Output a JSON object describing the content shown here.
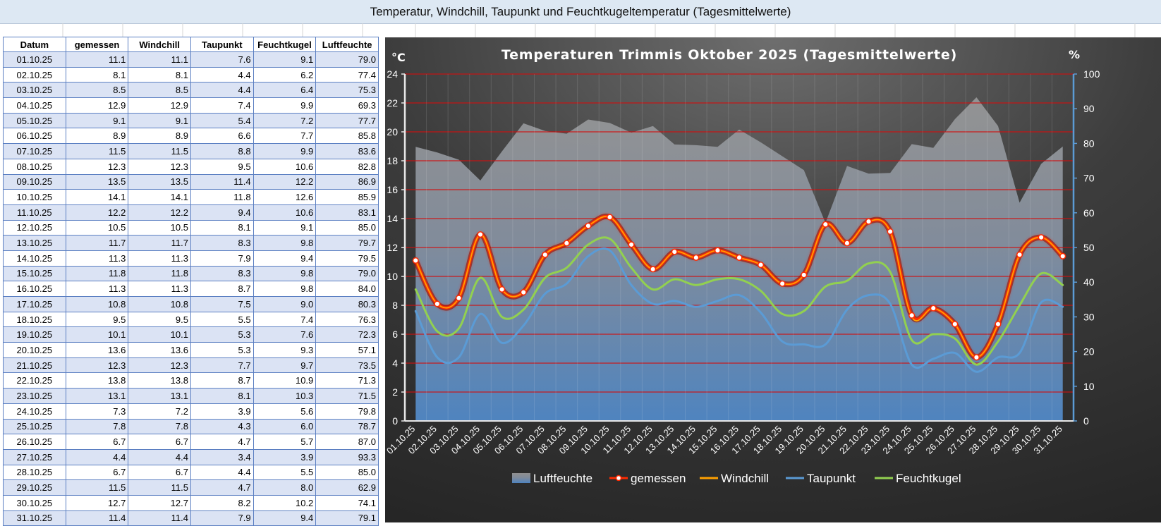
{
  "sheet": {
    "title": "Temperatur, Windchill, Taupunkt und Feuchtkugeltemperatur (Tagesmittelwerte)"
  },
  "table": {
    "headers": [
      "Datum",
      "gemessen",
      "Windchill",
      "Taupunkt",
      "Feuchtkugel",
      "Luftfeuchte"
    ],
    "rows": [
      [
        "01.10.25",
        "11.1",
        "11.1",
        "7.6",
        "9.1",
        "79.0"
      ],
      [
        "02.10.25",
        "8.1",
        "8.1",
        "4.4",
        "6.2",
        "77.4"
      ],
      [
        "03.10.25",
        "8.5",
        "8.5",
        "4.4",
        "6.4",
        "75.3"
      ],
      [
        "04.10.25",
        "12.9",
        "12.9",
        "7.4",
        "9.9",
        "69.3"
      ],
      [
        "05.10.25",
        "9.1",
        "9.1",
        "5.4",
        "7.2",
        "77.7"
      ],
      [
        "06.10.25",
        "8.9",
        "8.9",
        "6.6",
        "7.7",
        "85.8"
      ],
      [
        "07.10.25",
        "11.5",
        "11.5",
        "8.8",
        "9.9",
        "83.6"
      ],
      [
        "08.10.25",
        "12.3",
        "12.3",
        "9.5",
        "10.6",
        "82.8"
      ],
      [
        "09.10.25",
        "13.5",
        "13.5",
        "11.4",
        "12.2",
        "86.9"
      ],
      [
        "10.10.25",
        "14.1",
        "14.1",
        "11.8",
        "12.6",
        "85.9"
      ],
      [
        "11.10.25",
        "12.2",
        "12.2",
        "9.4",
        "10.6",
        "83.1"
      ],
      [
        "12.10.25",
        "10.5",
        "10.5",
        "8.1",
        "9.1",
        "85.0"
      ],
      [
        "13.10.25",
        "11.7",
        "11.7",
        "8.3",
        "9.8",
        "79.7"
      ],
      [
        "14.10.25",
        "11.3",
        "11.3",
        "7.9",
        "9.4",
        "79.5"
      ],
      [
        "15.10.25",
        "11.8",
        "11.8",
        "8.3",
        "9.8",
        "79.0"
      ],
      [
        "16.10.25",
        "11.3",
        "11.3",
        "8.7",
        "9.8",
        "84.0"
      ],
      [
        "17.10.25",
        "10.8",
        "10.8",
        "7.5",
        "9.0",
        "80.3"
      ],
      [
        "18.10.25",
        "9.5",
        "9.5",
        "5.5",
        "7.4",
        "76.3"
      ],
      [
        "19.10.25",
        "10.1",
        "10.1",
        "5.3",
        "7.6",
        "72.3"
      ],
      [
        "20.10.25",
        "13.6",
        "13.6",
        "5.3",
        "9.3",
        "57.1"
      ],
      [
        "21.10.25",
        "12.3",
        "12.3",
        "7.7",
        "9.7",
        "73.5"
      ],
      [
        "22.10.25",
        "13.8",
        "13.8",
        "8.7",
        "10.9",
        "71.3"
      ],
      [
        "23.10.25",
        "13.1",
        "13.1",
        "8.1",
        "10.3",
        "71.5"
      ],
      [
        "24.10.25",
        "7.3",
        "7.2",
        "3.9",
        "5.6",
        "79.8"
      ],
      [
        "25.10.25",
        "7.8",
        "7.8",
        "4.3",
        "6.0",
        "78.7"
      ],
      [
        "26.10.25",
        "6.7",
        "6.7",
        "4.7",
        "5.7",
        "87.0"
      ],
      [
        "27.10.25",
        "4.4",
        "4.4",
        "3.4",
        "3.9",
        "93.3"
      ],
      [
        "28.10.25",
        "6.7",
        "6.7",
        "4.4",
        "5.5",
        "85.0"
      ],
      [
        "29.10.25",
        "11.5",
        "11.5",
        "4.7",
        "8.0",
        "62.9"
      ],
      [
        "30.10.25",
        "12.7",
        "12.7",
        "8.2",
        "10.2",
        "74.1"
      ],
      [
        "31.10.25",
        "11.4",
        "11.4",
        "7.9",
        "9.4",
        "79.1"
      ]
    ]
  },
  "colors": {
    "gemessen": "#ff2a00",
    "windchill": "#ffa000",
    "taupunkt": "#5b9bd5",
    "feuchtkugel": "#92d050",
    "luftfeuchte": "#a6a6a6"
  },
  "chart_data": {
    "type": "line",
    "title": "Temperaturen Trimmis Oktober 2025 (Tagesmittelwerte)",
    "ylabel": "°C",
    "y2label": "%",
    "ylim": [
      0,
      24
    ],
    "y2lim": [
      0,
      100
    ],
    "yticks": [
      "0",
      "2",
      "4",
      "6",
      "8",
      "10",
      "12",
      "14",
      "16",
      "18",
      "20",
      "22",
      "24"
    ],
    "y2ticks": [
      "0",
      "10",
      "20",
      "30",
      "40",
      "50",
      "60",
      "70",
      "80",
      "90",
      "100"
    ],
    "categories": [
      "01.10.25",
      "02.10.25",
      "03.10.25",
      "04.10.25",
      "05.10.25",
      "06.10.25",
      "07.10.25",
      "08.10.25",
      "09.10.25",
      "10.10.25",
      "11.10.25",
      "12.10.25",
      "13.10.25",
      "14.10.25",
      "15.10.25",
      "16.10.25",
      "17.10.25",
      "18.10.25",
      "19.10.25",
      "20.10.25",
      "21.10.25",
      "22.10.25",
      "23.10.25",
      "24.10.25",
      "25.10.25",
      "26.10.25",
      "27.10.25",
      "28.10.25",
      "29.10.25",
      "30.10.25",
      "31.10.25"
    ],
    "legend_position": "bottom",
    "series": [
      {
        "name": "Luftfeuchte",
        "axis": "secondary",
        "kind": "area",
        "values": [
          79.0,
          77.4,
          75.3,
          69.3,
          77.7,
          85.8,
          83.6,
          82.8,
          86.9,
          85.9,
          83.1,
          85.0,
          79.7,
          79.5,
          79.0,
          84.0,
          80.3,
          76.3,
          72.3,
          57.1,
          73.5,
          71.3,
          71.5,
          79.8,
          78.7,
          87.0,
          93.3,
          85.0,
          62.9,
          74.1,
          79.1
        ]
      },
      {
        "name": "gemessen",
        "axis": "primary",
        "kind": "line",
        "values": [
          11.1,
          8.1,
          8.5,
          12.9,
          9.1,
          8.9,
          11.5,
          12.3,
          13.5,
          14.1,
          12.2,
          10.5,
          11.7,
          11.3,
          11.8,
          11.3,
          10.8,
          9.5,
          10.1,
          13.6,
          12.3,
          13.8,
          13.1,
          7.3,
          7.8,
          6.7,
          4.4,
          6.7,
          11.5,
          12.7,
          11.4
        ]
      },
      {
        "name": "Windchill",
        "axis": "primary",
        "kind": "line",
        "values": [
          11.1,
          8.1,
          8.5,
          12.9,
          9.1,
          8.9,
          11.5,
          12.3,
          13.5,
          14.1,
          12.2,
          10.5,
          11.7,
          11.3,
          11.8,
          11.3,
          10.8,
          9.5,
          10.1,
          13.6,
          12.3,
          13.8,
          13.1,
          7.2,
          7.8,
          6.7,
          4.4,
          6.7,
          11.5,
          12.7,
          11.4
        ]
      },
      {
        "name": "Taupunkt",
        "axis": "primary",
        "kind": "line",
        "values": [
          7.6,
          4.4,
          4.4,
          7.4,
          5.4,
          6.6,
          8.8,
          9.5,
          11.4,
          11.8,
          9.4,
          8.1,
          8.3,
          7.9,
          8.3,
          8.7,
          7.5,
          5.5,
          5.3,
          5.3,
          7.7,
          8.7,
          8.1,
          3.9,
          4.3,
          4.7,
          3.4,
          4.4,
          4.7,
          8.2,
          7.9
        ]
      },
      {
        "name": "Feuchtkugel",
        "axis": "primary",
        "kind": "line",
        "values": [
          9.1,
          6.2,
          6.4,
          9.9,
          7.2,
          7.7,
          9.9,
          10.6,
          12.2,
          12.6,
          10.6,
          9.1,
          9.8,
          9.4,
          9.8,
          9.8,
          9.0,
          7.4,
          7.6,
          9.3,
          9.7,
          10.9,
          10.3,
          5.6,
          6.0,
          5.7,
          3.9,
          5.5,
          8.0,
          10.2,
          9.4
        ]
      }
    ]
  }
}
